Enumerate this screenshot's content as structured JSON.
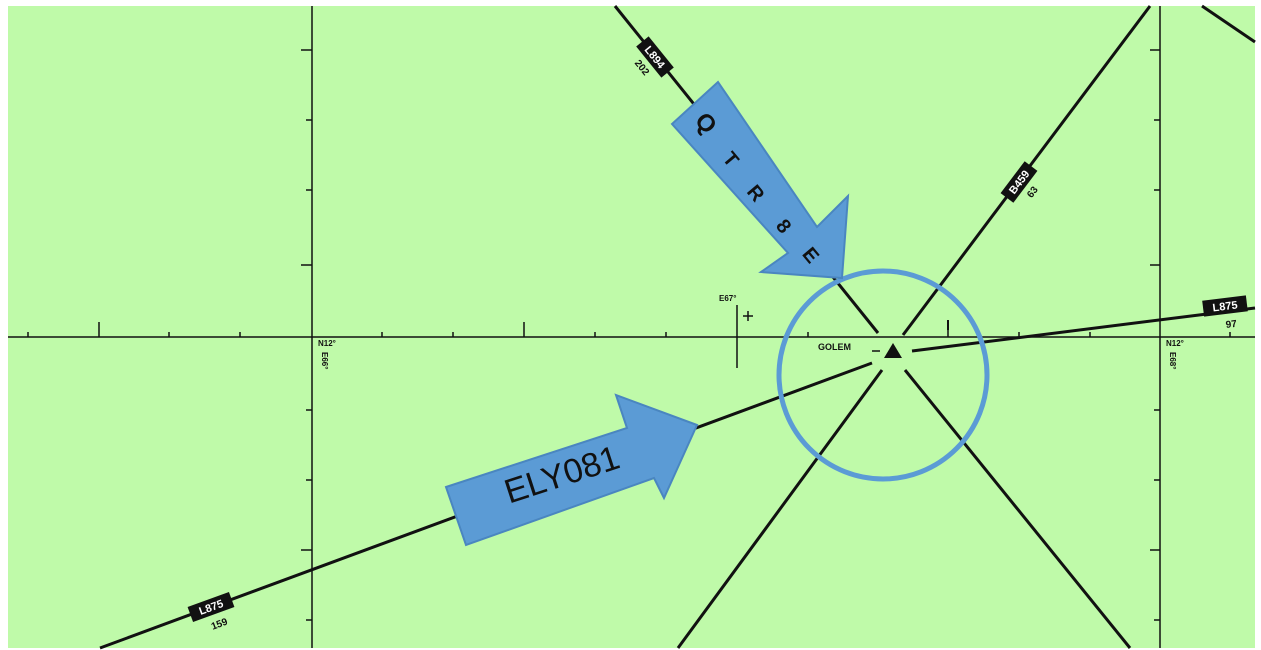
{
  "map": {
    "background": "#bffaa9",
    "line_color": "#111111",
    "waypoint": {
      "name": "GOLEM",
      "symbol": "triangle-waypoint"
    },
    "airways": [
      {
        "name": "L894",
        "distance": "202"
      },
      {
        "name": "B459",
        "distance": "63"
      },
      {
        "name": "L875",
        "distance": "97"
      },
      {
        "name": "L875",
        "distance": "159"
      }
    ],
    "grid_labels": {
      "lat_left": "N12°",
      "lon_left": "E66°",
      "lat_right": "N12°",
      "lon_right": "E68°",
      "lon_center": "E67°"
    }
  },
  "annotations": {
    "arrow_color": "#5b9bd5",
    "arrow_outline": "#4a86c0",
    "circle_color": "#5b9bd5",
    "ely_label": "ELY081",
    "qtr_letters": [
      "Q",
      "T",
      "R",
      "8",
      "E"
    ]
  }
}
